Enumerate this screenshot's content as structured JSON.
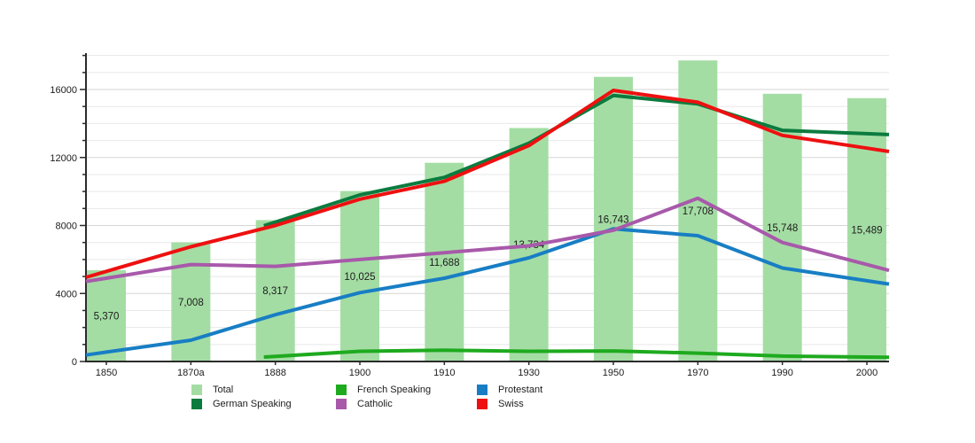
{
  "chart_data": {
    "type": "bar+line",
    "title": "",
    "xlabel": "",
    "ylabel": "",
    "categories": [
      "1850",
      "1870a",
      "1888",
      "1900",
      "1910",
      "1930",
      "1950",
      "1970",
      "1990",
      "2000"
    ],
    "bar_series": {
      "name": "Total",
      "color": "#a4dda4",
      "values": [
        5370,
        7008,
        8317,
        10025,
        11688,
        13734,
        16743,
        17708,
        15748,
        15489
      ],
      "labels": [
        "5,370",
        "7,008",
        "8,317",
        "10,025",
        "11,688",
        "13,734",
        "16,743",
        "17,708",
        "15,748",
        "15,489"
      ]
    },
    "line_series": [
      {
        "name": "French Speaking",
        "color": "#1eaa1e",
        "values": [
          null,
          null,
          300,
          600,
          660,
          600,
          620,
          490,
          320,
          260
        ]
      },
      {
        "name": "Protestant",
        "color": "#187ec4",
        "values": [
          550,
          1250,
          2750,
          4050,
          4900,
          6100,
          7800,
          7400,
          5500,
          4750
        ]
      },
      {
        "name": "Catholic",
        "color": "#a859aa",
        "values": [
          4900,
          5700,
          5600,
          6000,
          6400,
          6800,
          7720,
          9600,
          7000,
          5700
        ]
      },
      {
        "name": "German Speaking",
        "color": "#0b7b3f",
        "values": [
          null,
          null,
          8200,
          9800,
          10830,
          12840,
          15650,
          15150,
          13600,
          13400
        ]
      },
      {
        "name": "Swiss",
        "color": "#ee1010",
        "values": [
          5300,
          6750,
          8000,
          9550,
          10600,
          12700,
          15950,
          15250,
          13300,
          12550
        ]
      }
    ],
    "y_axis": {
      "ylim": [
        0,
        18000
      ],
      "grid_step": 1000,
      "labeled_ticks": [
        0,
        4000,
        8000,
        12000,
        16000
      ],
      "tick_labels": [
        "0",
        "4000",
        "8000",
        "12000",
        "16000"
      ]
    },
    "grid": "horizontal-only",
    "legend_position": "bottom"
  },
  "legend": {
    "items": [
      {
        "label": "Total",
        "color": "#a4dda4"
      },
      {
        "label": "French Speaking",
        "color": "#1eaa1e"
      },
      {
        "label": "Protestant",
        "color": "#187ec4"
      },
      {
        "label": "German Speaking",
        "color": "#0b7b3f"
      },
      {
        "label": "Catholic",
        "color": "#a859aa"
      },
      {
        "label": "Swiss",
        "color": "#ee1010"
      }
    ]
  }
}
